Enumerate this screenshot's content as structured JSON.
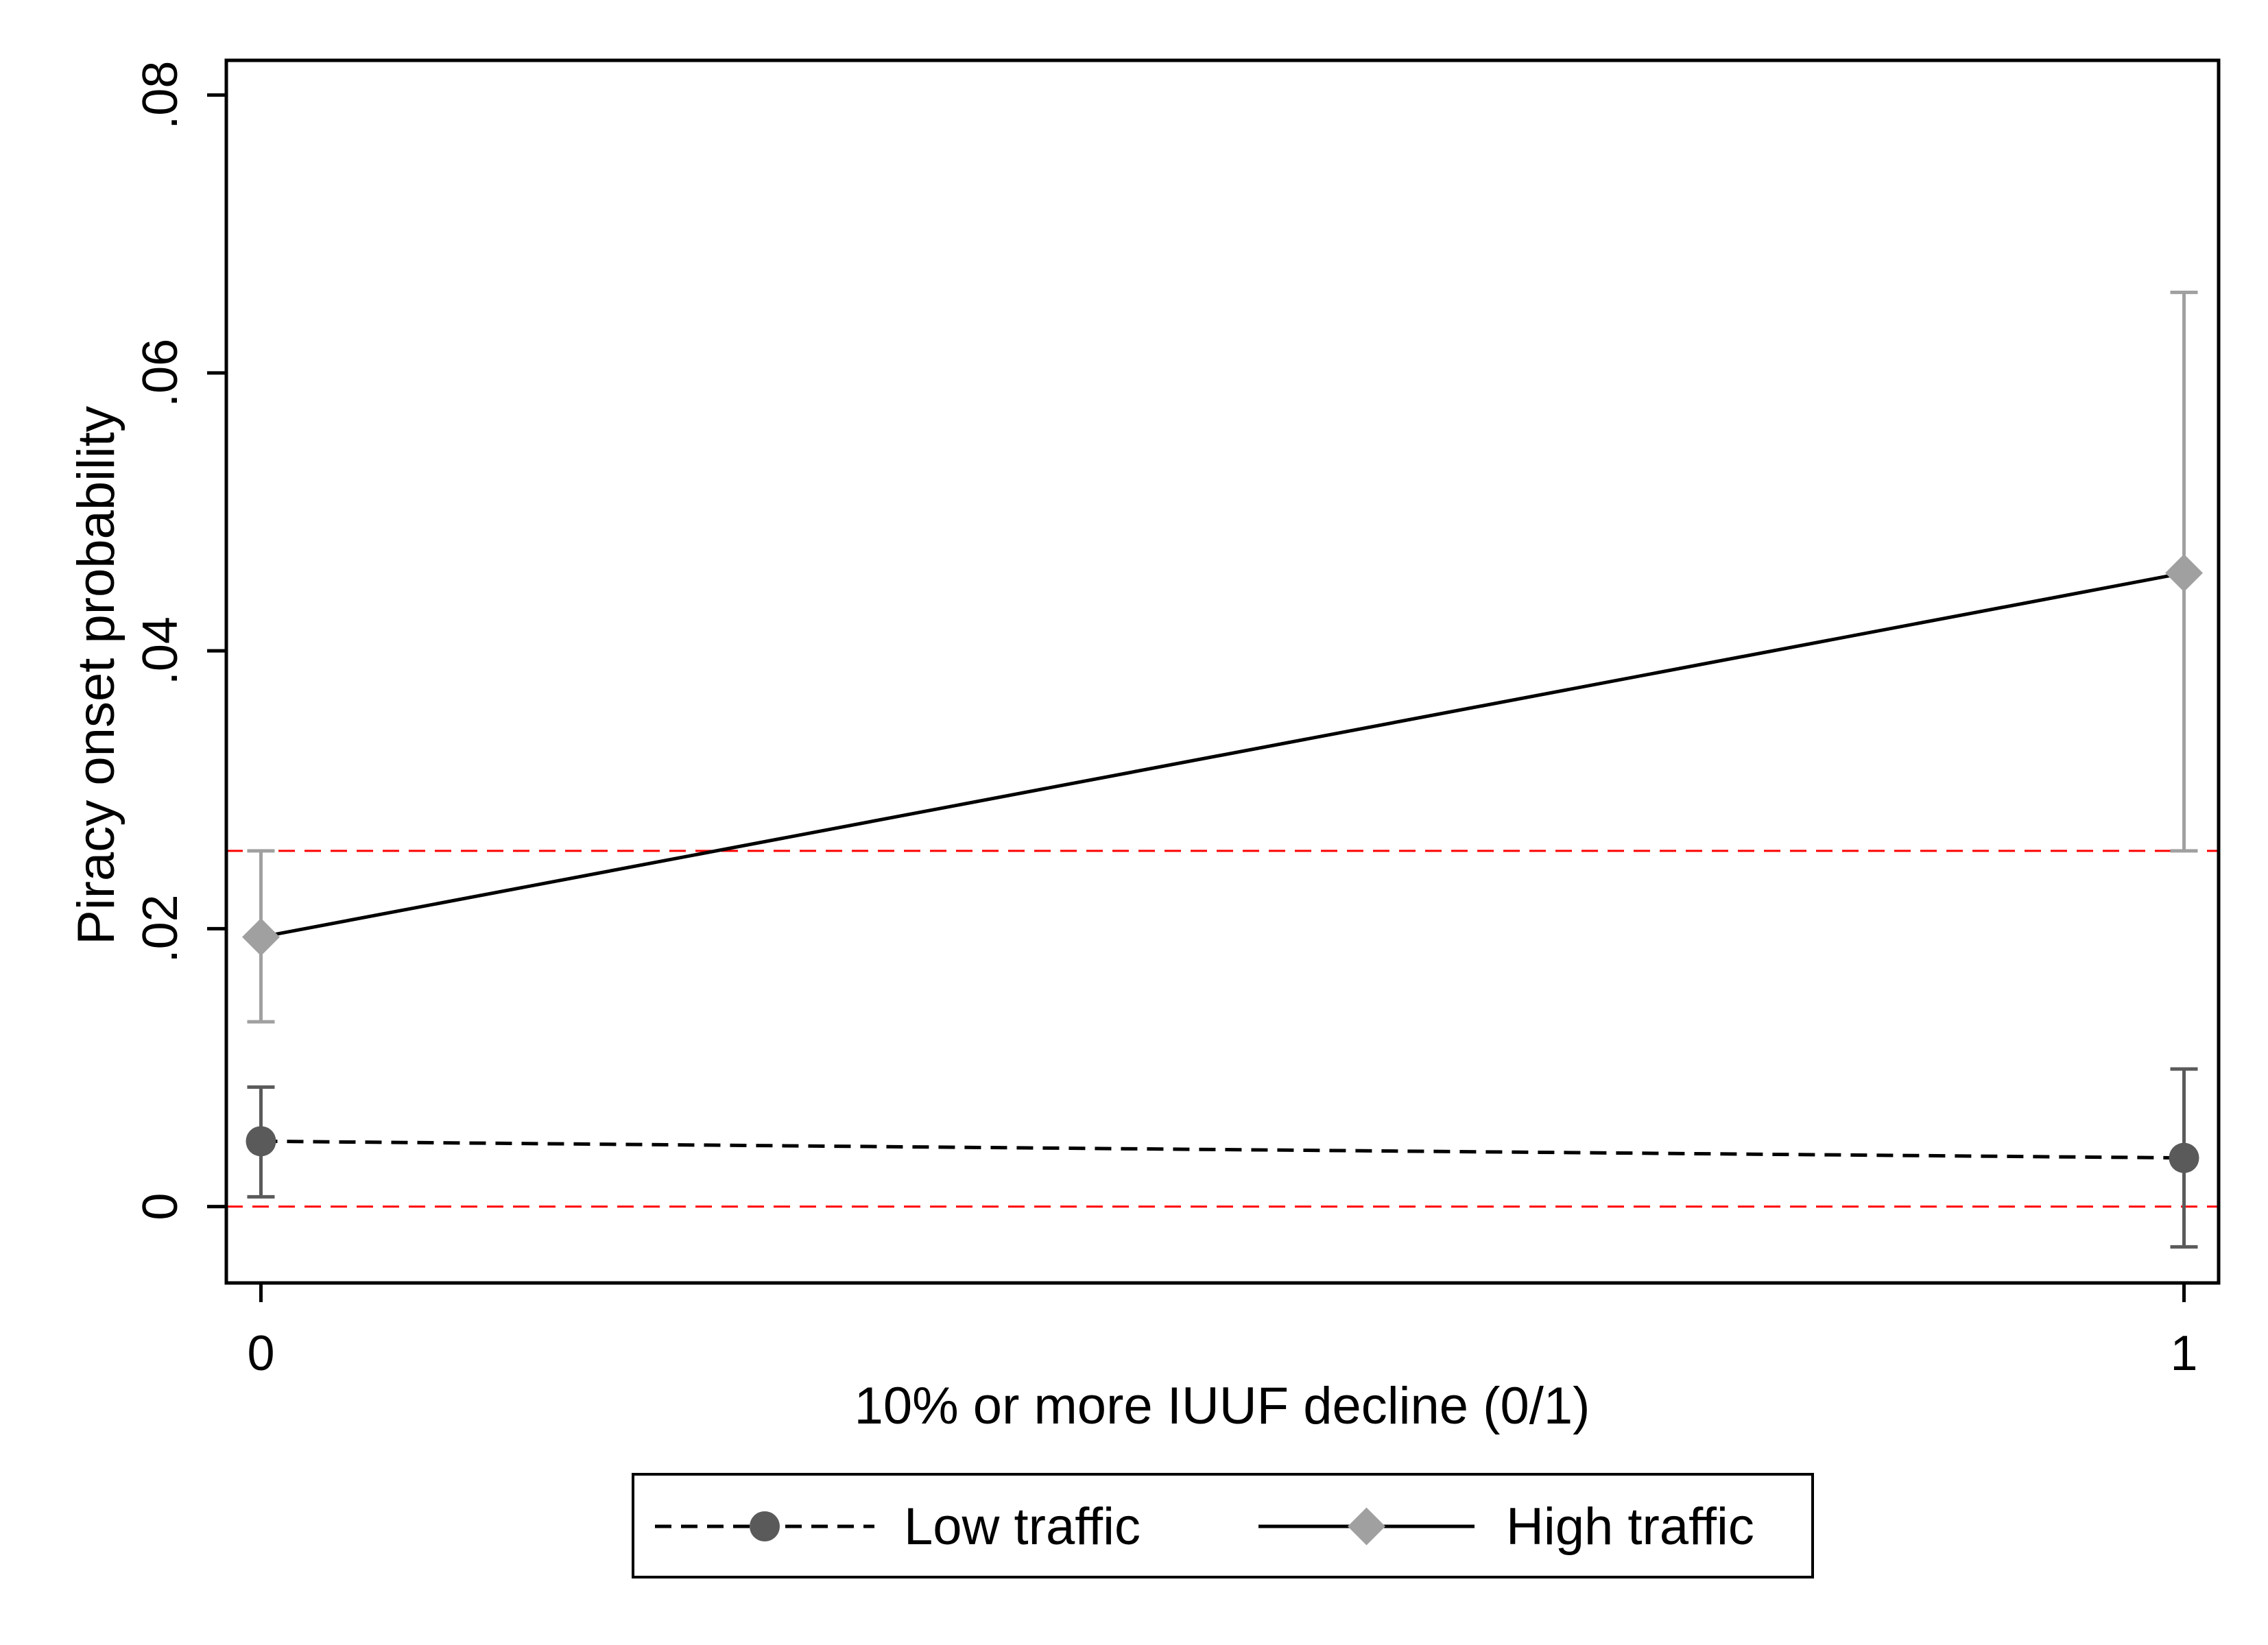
{
  "chart_data": {
    "type": "line",
    "title": "",
    "xlabel": "10% or more IUUF decline (0/1)",
    "ylabel": "Piracy onset probability",
    "x": [
      0,
      1
    ],
    "x_tick_labels": [
      "0",
      "1"
    ],
    "xlim": [
      -0.018,
      1.018
    ],
    "ylim": [
      -0.0055,
      0.0825
    ],
    "y_ticks": [
      0,
      0.02,
      0.04,
      0.06,
      0.08
    ],
    "y_tick_labels": [
      "0",
      ".02",
      ".04",
      ".06",
      ".08"
    ],
    "grid": false,
    "legend_position": "bottom",
    "series": [
      {
        "name": "Low traffic",
        "line_style": "dashed",
        "marker": "circle",
        "color": "#5a5a5a",
        "values": [
          0.0047,
          0.0035
        ],
        "ci_low": [
          0.0007,
          -0.0029
        ],
        "ci_high": [
          0.0086,
          0.0099
        ]
      },
      {
        "name": "High traffic",
        "line_style": "solid",
        "marker": "diamond",
        "color": "#a0a0a0",
        "values": [
          0.0194,
          0.0456
        ],
        "ci_low": [
          0.0133,
          0.0256
        ],
        "ci_high": [
          0.0256,
          0.0658
        ]
      }
    ],
    "reference_lines": [
      {
        "y": 0,
        "color": "#ff0000",
        "style": "dashed"
      },
      {
        "y": 0.0256,
        "color": "#ff0000",
        "style": "dashed"
      }
    ]
  }
}
